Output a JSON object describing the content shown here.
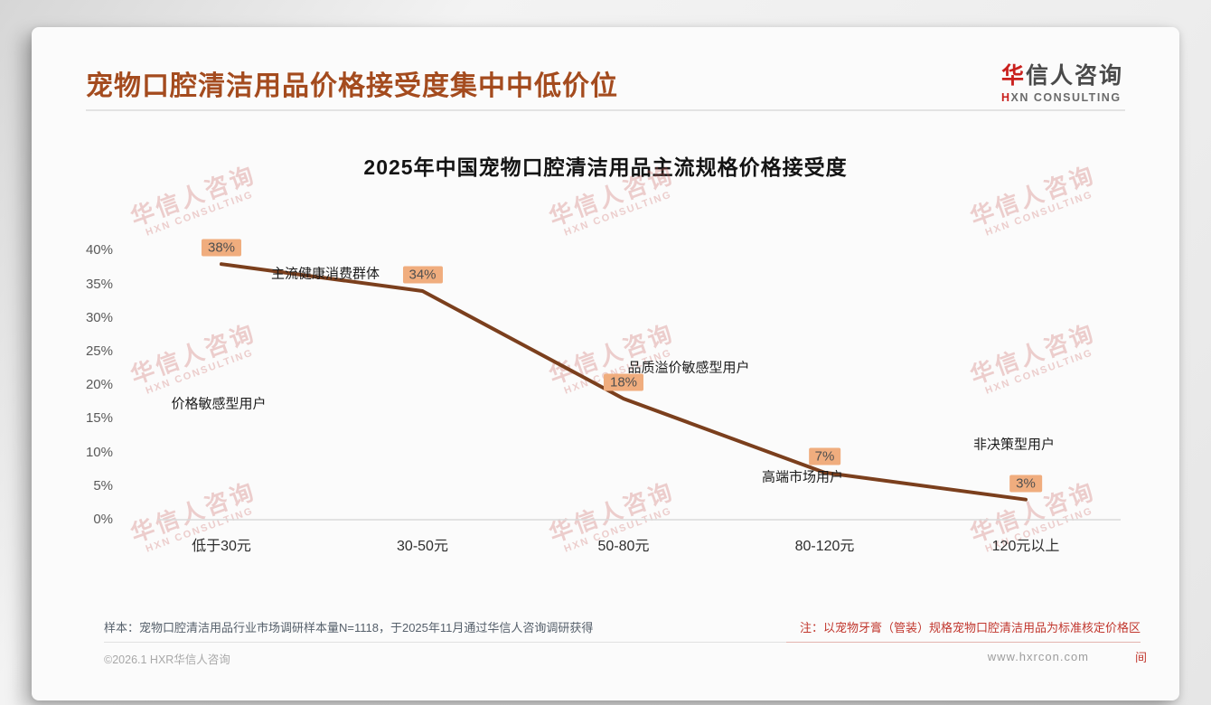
{
  "header": {
    "title": "宠物口腔清洁用品价格接受度集中中低价位",
    "logo": {
      "cn_accent": "华",
      "cn_rest": "信人咨询",
      "en_accent": "H",
      "en_rest": "XN CONSULTING"
    }
  },
  "chart_data": {
    "type": "line",
    "title": "2025年中国宠物口腔清洁用品主流规格价格接受度",
    "categories": [
      "低于30元",
      "30-50元",
      "50-80元",
      "80-120元",
      "120元以上"
    ],
    "values": [
      38,
      34,
      18,
      7,
      3
    ],
    "data_labels": [
      "38%",
      "34%",
      "18%",
      "7%",
      "3%"
    ],
    "annotations": [
      {
        "text": "价格敏感型用户",
        "category_index": 0
      },
      {
        "text": "主流健康消费群体",
        "category_index": 1
      },
      {
        "text": "品质溢价敏感型用户",
        "category_index": 2
      },
      {
        "text": "高端市场用户",
        "category_index": 3
      },
      {
        "text": "非决策型用户",
        "category_index": 4
      }
    ],
    "y_ticks": [
      "0%",
      "5%",
      "10%",
      "15%",
      "20%",
      "25%",
      "30%",
      "35%",
      "40%"
    ],
    "ylim": [
      0,
      40
    ],
    "xlabel": "",
    "ylabel": "",
    "grid": false,
    "legend": false,
    "line_color": "#7b3f1d",
    "label_bg_color": "#f0ad7e"
  },
  "watermark": {
    "line1": "华信人咨询",
    "line2": "HXN CONSULTING"
  },
  "footer": {
    "sample_note": "样本：宠物口腔清洁用品行业市场调研样本量N=1118，于2025年11月通过华信人咨询调研获得",
    "price_note": "注：以宠物牙膏（管装）规格宠物口腔清洁用品为标准核定价格区",
    "price_note_overflow": "间",
    "copyright": "©2026.1 HXR华信人咨询",
    "website": "www.hxrcon.com"
  },
  "colors": {
    "title_accent": "#a44b1e",
    "line": "#7b3f1d",
    "badge_bg": "#f0ad7e",
    "note_red": "#c1372e"
  }
}
